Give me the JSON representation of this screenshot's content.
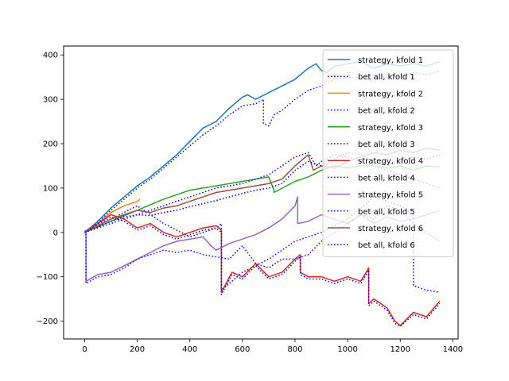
{
  "chart_data": {
    "type": "line",
    "xlim": [
      -80,
      1420
    ],
    "ylim": [
      -240,
      420
    ],
    "xticks": [
      0,
      200,
      400,
      600,
      800,
      1000,
      1200,
      1400
    ],
    "yticks": [
      -200,
      -100,
      0,
      100,
      200,
      300,
      400
    ],
    "grid": false,
    "legend_position": "upper right",
    "series": [
      {
        "name": "strategy, kfold 1",
        "color": "#1f77b4",
        "style": "solid",
        "x": [
          0,
          50,
          100,
          150,
          200,
          250,
          300,
          350,
          400,
          450,
          500,
          550,
          600,
          620,
          650,
          700,
          750,
          800,
          850,
          880,
          900,
          920,
          950,
          1000,
          1050,
          1100,
          1150,
          1200,
          1250,
          1300,
          1350
        ],
        "y": [
          0,
          25,
          55,
          80,
          105,
          125,
          150,
          175,
          205,
          235,
          250,
          280,
          305,
          310,
          300,
          315,
          330,
          345,
          370,
          380,
          365,
          360,
          375,
          380,
          385,
          370,
          380,
          375,
          380,
          375,
          385
        ]
      },
      {
        "name": "bet all, kfold 1",
        "color": "#0000ff",
        "style": "dotted",
        "x": [
          0,
          50,
          100,
          150,
          200,
          250,
          300,
          350,
          400,
          450,
          500,
          550,
          600,
          650,
          680,
          680,
          700,
          720,
          750,
          800,
          850,
          900,
          950,
          1000,
          1050,
          1100,
          1150,
          1200,
          1250,
          1300,
          1350
        ],
        "y": [
          0,
          22,
          50,
          75,
          100,
          120,
          145,
          170,
          195,
          220,
          240,
          265,
          285,
          290,
          300,
          245,
          240,
          265,
          275,
          300,
          320,
          330,
          345,
          350,
          350,
          340,
          355,
          350,
          360,
          355,
          365
        ]
      },
      {
        "name": "strategy, kfold 2",
        "color": "#ff7f0e",
        "style": "solid",
        "x": [
          0,
          50,
          100,
          150,
          200,
          210
        ],
        "y": [
          0,
          20,
          45,
          60,
          70,
          75
        ]
      },
      {
        "name": "bet all, kfold 2",
        "color": "#0000ff",
        "style": "dotted",
        "x": [
          0,
          100,
          200,
          300,
          400,
          500,
          520,
          520,
          600,
          700,
          800,
          900,
          1000,
          1100,
          1200,
          1250,
          1250,
          1300,
          1350
        ],
        "y": [
          0,
          30,
          60,
          20,
          -10,
          10,
          20,
          -130,
          -90,
          -60,
          -20,
          0,
          30,
          80,
          60,
          40,
          -120,
          -130,
          -135
        ]
      },
      {
        "name": "strategy, kfold 3",
        "color": "#2ca02c",
        "style": "solid",
        "x": [
          0,
          100,
          200,
          300,
          400,
          500,
          600,
          700,
          720,
          720,
          800,
          850,
          900,
          950,
          1000,
          1050,
          1100,
          1150,
          1200,
          1250,
          1300,
          1350
        ],
        "y": [
          0,
          25,
          50,
          75,
          95,
          105,
          115,
          125,
          95,
          90,
          115,
          125,
          140,
          150,
          145,
          150,
          150,
          145,
          150,
          140,
          150,
          148
        ]
      },
      {
        "name": "bet all, kfold 3",
        "color": "#0000ff",
        "style": "dotted",
        "x": [
          0,
          100,
          200,
          300,
          400,
          500,
          600,
          700,
          800,
          850,
          880,
          900,
          950,
          1000,
          1050,
          1100,
          1150,
          1200,
          1250,
          1300,
          1350
        ],
        "y": [
          0,
          20,
          40,
          60,
          80,
          100,
          110,
          130,
          170,
          180,
          150,
          160,
          175,
          170,
          160,
          150,
          140,
          130,
          120,
          110,
          100
        ]
      },
      {
        "name": "strategy, kfold 4",
        "color": "#d62728",
        "style": "solid",
        "x": [
          0,
          50,
          100,
          150,
          200,
          250,
          300,
          350,
          400,
          450,
          500,
          520,
          520,
          560,
          600,
          650,
          700,
          750,
          800,
          820,
          820,
          850,
          900,
          950,
          1000,
          1050,
          1080,
          1080,
          1100,
          1150,
          1180,
          1200,
          1250,
          1300,
          1350
        ],
        "y": [
          0,
          20,
          40,
          30,
          10,
          20,
          0,
          -10,
          0,
          10,
          15,
          5,
          -135,
          -90,
          -100,
          -70,
          -100,
          -90,
          -60,
          -50,
          -90,
          -100,
          -100,
          -110,
          -100,
          -110,
          -80,
          -160,
          -150,
          -170,
          -200,
          -210,
          -180,
          -190,
          -155
        ]
      },
      {
        "name": "bet all, kfold 4",
        "color": "#0000ff",
        "style": "dotted",
        "x": [
          0,
          50,
          100,
          150,
          200,
          250,
          300,
          350,
          400,
          450,
          500,
          520,
          520,
          560,
          600,
          650,
          700,
          750,
          800,
          820,
          820,
          850,
          900,
          950,
          1000,
          1050,
          1080,
          1080,
          1100,
          1150,
          1180,
          1200,
          1250,
          1300,
          1350
        ],
        "y": [
          0,
          18,
          35,
          25,
          5,
          15,
          -5,
          -15,
          -5,
          5,
          10,
          0,
          -140,
          -95,
          -105,
          -75,
          -105,
          -95,
          -65,
          -55,
          -95,
          -105,
          -105,
          -115,
          -105,
          -115,
          -85,
          -165,
          -155,
          -175,
          -205,
          -212,
          -185,
          -195,
          -160
        ]
      },
      {
        "name": "strategy, kfold 5",
        "color": "#9467bd",
        "style": "solid",
        "x": [
          0,
          5,
          5,
          50,
          100,
          150,
          200,
          250,
          300,
          350,
          400,
          450,
          480,
          500,
          550,
          600,
          650,
          700,
          750,
          800,
          810,
          810,
          850,
          900,
          950,
          1000,
          1050,
          1100,
          1150,
          1200,
          1250,
          1300,
          1350
        ],
        "y": [
          0,
          5,
          -110,
          -95,
          -90,
          -75,
          -60,
          -45,
          -30,
          -20,
          -15,
          -10,
          -30,
          -40,
          -25,
          -15,
          -5,
          10,
          30,
          60,
          80,
          20,
          25,
          40,
          30,
          20,
          40,
          20,
          35,
          25,
          30,
          40,
          50
        ]
      },
      {
        "name": "bet all, kfold 5",
        "color": "#0000ff",
        "style": "dotted",
        "x": [
          0,
          5,
          5,
          50,
          100,
          150,
          200,
          250,
          300,
          350,
          400,
          450,
          500,
          550,
          600,
          650,
          700,
          750,
          800,
          850,
          900,
          950,
          1000,
          1050,
          1100,
          1150,
          1200,
          1250,
          1300,
          1350
        ],
        "y": [
          0,
          5,
          -115,
          -100,
          -95,
          -80,
          -60,
          -50,
          -40,
          -45,
          -40,
          -50,
          -55,
          -60,
          -30,
          -70,
          -80,
          -60,
          -60,
          -50,
          -20,
          0,
          20,
          40,
          30,
          60,
          50,
          20,
          0,
          -20
        ]
      },
      {
        "name": "strategy, kfold 6",
        "color": "#8c564b",
        "style": "solid",
        "x": [
          0,
          50,
          100,
          150,
          200,
          250,
          300,
          350,
          400,
          450,
          500,
          550,
          600,
          650,
          700,
          750,
          800,
          850,
          870,
          900,
          950,
          1000,
          1050,
          1100,
          1150,
          1200,
          1250,
          1300,
          1350
        ],
        "y": [
          0,
          15,
          30,
          40,
          50,
          45,
          55,
          60,
          70,
          80,
          90,
          95,
          100,
          105,
          110,
          120,
          150,
          175,
          140,
          150,
          145,
          160,
          170,
          180,
          175,
          185,
          180,
          190,
          185
        ]
      },
      {
        "name": "bet all, kfold 6",
        "color": "#0000ff",
        "style": "dotted",
        "x": [
          0,
          50,
          100,
          150,
          200,
          250,
          300,
          350,
          400,
          450,
          500,
          550,
          600,
          650,
          700,
          750,
          800,
          850,
          900,
          950,
          1000,
          1050,
          1100,
          1150,
          1200,
          1250,
          1300,
          1350
        ],
        "y": [
          0,
          12,
          25,
          35,
          40,
          38,
          45,
          50,
          58,
          65,
          72,
          80,
          88,
          95,
          100,
          110,
          140,
          160,
          150,
          165,
          180,
          175,
          160,
          150,
          160,
          170,
          165,
          175
        ]
      }
    ]
  }
}
